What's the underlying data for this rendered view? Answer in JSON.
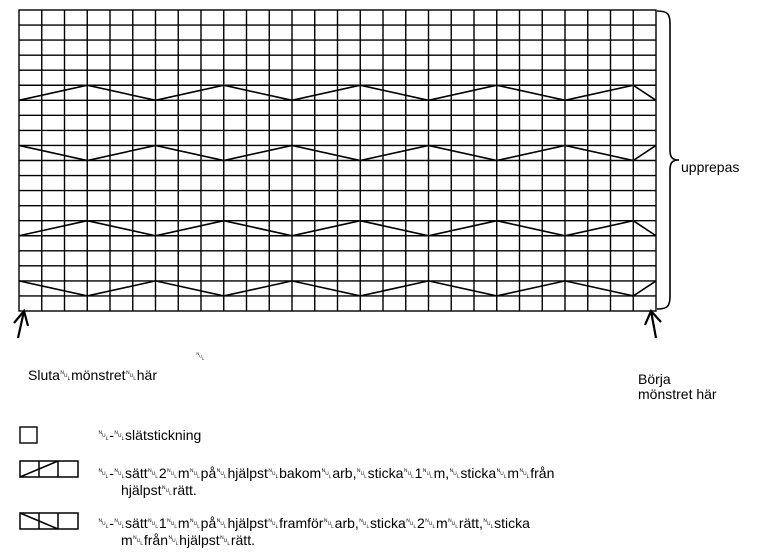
{
  "chart": {
    "columns": 28,
    "rows": 20,
    "cable_rows": [
      5,
      9,
      14,
      18
    ],
    "cable_styles": [
      "zigzag-a",
      "zigzag-b",
      "zigzag-a",
      "zigzag-b"
    ],
    "colors": {
      "line": "#000000",
      "background": "#ffffff"
    }
  },
  "labels": {
    "repeat": "upprepas",
    "start": "Sluta␀mönstret␀här",
    "stray": "␀",
    "end": "Börja mönstret här"
  },
  "legend": [
    {
      "symbol": "empty-square",
      "text": "␀-␀slätstickning"
    },
    {
      "symbol": "right-cross",
      "line1": "␀-␀sätt␀2␀m␀på␀hjälpst␀bakom␀arb,␀sticka␀1␀m,␀sticka␀m␀från",
      "line2": "hjälpst␀rätt."
    },
    {
      "symbol": "left-cross",
      "line1": "␀-␀sätt␀1␀m␀på␀hjälpst␀framför␀arb,␀sticka␀2␀m␀rätt,␀sticka",
      "line2": "m␀från␀hjälpst␀rätt."
    }
  ]
}
